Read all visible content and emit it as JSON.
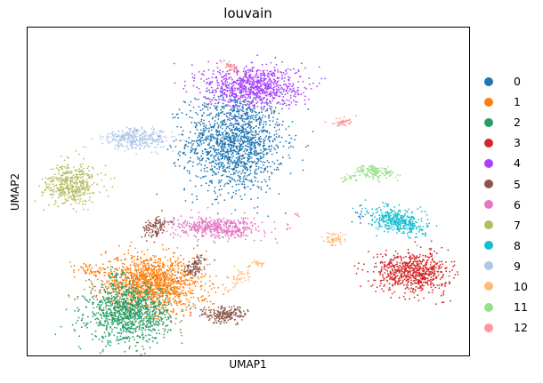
{
  "chart_data": {
    "type": "scatter",
    "title": "louvain",
    "xlabel": "UMAP1",
    "ylabel": "UMAP2",
    "xlim": [
      0,
      100
    ],
    "ylim": [
      0,
      100
    ],
    "grid": false,
    "legend_placement": "right",
    "series": [
      {
        "name": "0",
        "color": "#1f77b4",
        "clusters": [
          {
            "cx": 47,
            "cy": 65,
            "sx": 5.5,
            "sy": 7.5,
            "n": 1500,
            "angle": 0
          },
          {
            "cx": 75.5,
            "cy": 43,
            "sx": 0.7,
            "sy": 1.2,
            "n": 12,
            "angle": 0
          }
        ]
      },
      {
        "name": "1",
        "color": "#ff7f0e",
        "clusters": [
          {
            "cx": 28,
            "cy": 22,
            "sx": 5.8,
            "sy": 4.2,
            "n": 1400,
            "angle": -10
          },
          {
            "cx": 14,
            "cy": 26,
            "sx": 1.6,
            "sy": 0.8,
            "n": 45,
            "angle": -15
          }
        ]
      },
      {
        "name": "2",
        "color": "#279e68",
        "clusters": [
          {
            "cx": 23,
            "cy": 13,
            "sx": 4.6,
            "sy": 4.4,
            "n": 1100,
            "angle": 0
          },
          {
            "cx": 20,
            "cy": 24,
            "sx": 1.0,
            "sy": 2.0,
            "n": 20,
            "angle": 0
          }
        ]
      },
      {
        "name": "3",
        "color": "#d62728",
        "clusters": [
          {
            "cx": 87,
            "cy": 25.5,
            "sx": 4.2,
            "sy": 3.0,
            "n": 700,
            "angle": -8
          }
        ]
      },
      {
        "name": "4",
        "color": "#aa40fc",
        "clusters": [
          {
            "cx": 51,
            "cy": 82,
            "sx": 5.5,
            "sy": 3.2,
            "n": 850,
            "angle": 0
          }
        ]
      },
      {
        "name": "5",
        "color": "#8c564b",
        "clusters": [
          {
            "cx": 44.5,
            "cy": 12.5,
            "sx": 2.6,
            "sy": 1.3,
            "n": 200,
            "angle": 0
          },
          {
            "cx": 29,
            "cy": 39,
            "sx": 1.2,
            "sy": 2.0,
            "n": 110,
            "angle": -35
          },
          {
            "cx": 38,
            "cy": 27,
            "sx": 1.0,
            "sy": 2.0,
            "n": 100,
            "angle": -35
          }
        ]
      },
      {
        "name": "6",
        "color": "#e377c2",
        "clusters": [
          {
            "cx": 43,
            "cy": 39,
            "sx": 5.0,
            "sy": 1.6,
            "n": 480,
            "angle": 0
          }
        ]
      },
      {
        "name": "7",
        "color": "#b5bd61",
        "clusters": [
          {
            "cx": 10,
            "cy": 52,
            "sx": 2.8,
            "sy": 3.1,
            "n": 450,
            "angle": -25
          }
        ]
      },
      {
        "name": "8",
        "color": "#17becf",
        "clusters": [
          {
            "cx": 84,
            "cy": 41,
            "sx": 3.4,
            "sy": 1.8,
            "n": 400,
            "angle": -20
          }
        ]
      },
      {
        "name": "9",
        "color": "#aec7e8",
        "clusters": [
          {
            "cx": 25,
            "cy": 66,
            "sx": 3.8,
            "sy": 1.6,
            "n": 330,
            "angle": 0
          }
        ]
      },
      {
        "name": "10",
        "color": "#ffbb78",
        "clusters": [
          {
            "cx": 69.5,
            "cy": 35.5,
            "sx": 1.3,
            "sy": 1.0,
            "n": 60,
            "angle": 0
          },
          {
            "cx": 48,
            "cy": 24,
            "sx": 1.0,
            "sy": 2.0,
            "n": 45,
            "angle": -30
          },
          {
            "cx": 52.5,
            "cy": 28,
            "sx": 0.8,
            "sy": 0.6,
            "n": 20,
            "angle": 0
          }
        ]
      },
      {
        "name": "11",
        "color": "#98df8a",
        "clusters": [
          {
            "cx": 78.5,
            "cy": 56,
            "sx": 2.2,
            "sy": 1.0,
            "n": 140,
            "angle": -10
          },
          {
            "cx": 72.5,
            "cy": 54,
            "sx": 1.0,
            "sy": 0.6,
            "n": 22,
            "angle": 0
          }
        ]
      },
      {
        "name": "12",
        "color": "#ff9896",
        "clusters": [
          {
            "cx": 46,
            "cy": 88,
            "sx": 1.2,
            "sy": 0.4,
            "n": 45,
            "angle": -45
          },
          {
            "cx": 71,
            "cy": 71,
            "sx": 1.3,
            "sy": 0.6,
            "n": 45,
            "angle": 10
          },
          {
            "cx": 61,
            "cy": 43,
            "sx": 0.4,
            "sy": 0.2,
            "n": 8,
            "angle": -30
          }
        ]
      }
    ]
  }
}
